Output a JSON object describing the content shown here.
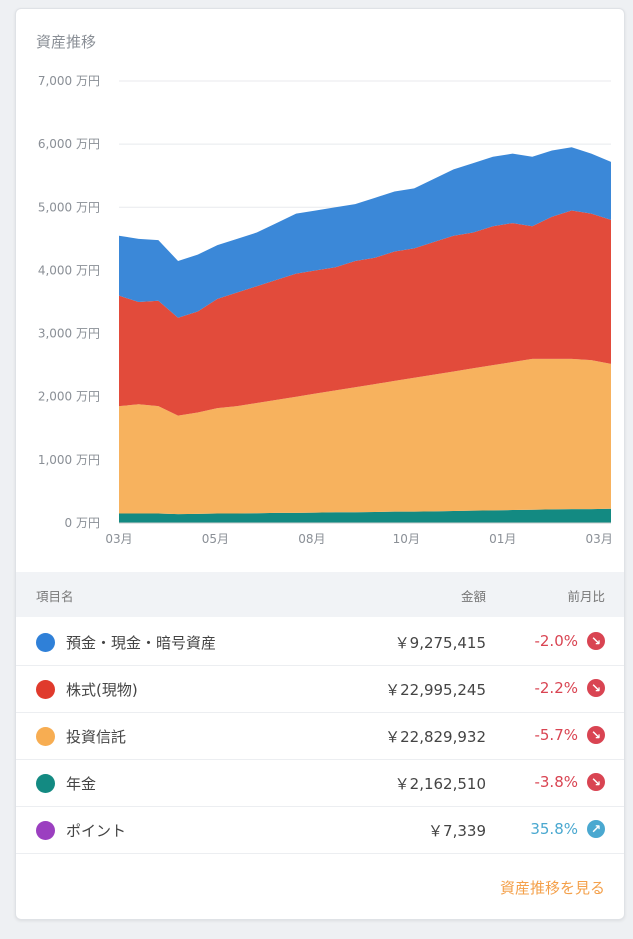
{
  "card": {
    "title": "資産推移",
    "link_label": "資産推移を見る"
  },
  "table": {
    "headers": {
      "name": "項目名",
      "amount": "金額",
      "change": "前月比"
    },
    "rows": [
      {
        "name": "預金・現金・暗号資産",
        "amount": "￥9,275,415",
        "change": "-2.0%",
        "direction": "down",
        "color": "#2f80d8"
      },
      {
        "name": "株式(現物)",
        "amount": "￥22,995,245",
        "change": "-2.2%",
        "direction": "down",
        "color": "#e03a2c"
      },
      {
        "name": "投資信託",
        "amount": "￥22,829,932",
        "change": "-5.7%",
        "direction": "down",
        "color": "#f7ad52"
      },
      {
        "name": "年金",
        "amount": "￥2,162,510",
        "change": "-3.8%",
        "direction": "down",
        "color": "#138a82"
      },
      {
        "name": "ポイント",
        "amount": "￥7,339",
        "change": "35.8%",
        "direction": "up",
        "color": "#9b3fc0"
      }
    ],
    "down_color": "#d94452",
    "up_color": "#4aa8d0"
  },
  "chart_data": {
    "type": "area",
    "stacked": true,
    "ylabel_unit": "万円",
    "ylim": [
      0,
      7000
    ],
    "y_ticks": [
      "0 万円",
      "1,000 万円",
      "2,000 万円",
      "3,000 万円",
      "4,000 万円",
      "5,000 万円",
      "6,000 万円",
      "7,000 万円"
    ],
    "x_ticks": [
      {
        "label": "03月",
        "x": 0
      },
      {
        "label": "05月",
        "x": 4.9
      },
      {
        "label": "08月",
        "x": 9.8
      },
      {
        "label": "10月",
        "x": 14.6
      },
      {
        "label": "01月",
        "x": 19.5
      },
      {
        "label": "03月",
        "x": 24.4
      }
    ],
    "x": [
      0,
      1,
      2,
      3,
      4,
      5,
      6,
      7,
      8,
      9,
      10,
      11,
      12,
      13,
      14,
      15,
      16,
      17,
      18,
      19,
      20,
      21,
      22,
      23,
      24,
      25
    ],
    "series": [
      {
        "name": "年金",
        "color": "#138a82",
        "values": [
          150,
          150,
          150,
          140,
          145,
          150,
          150,
          155,
          160,
          160,
          165,
          170,
          170,
          175,
          180,
          180,
          185,
          190,
          195,
          200,
          205,
          210,
          215,
          220,
          220,
          225
        ]
      },
      {
        "name": "投資信託",
        "color": "#f7b25e",
        "values": [
          1700,
          1730,
          1700,
          1560,
          1605,
          1670,
          1700,
          1745,
          1790,
          1840,
          1885,
          1930,
          1980,
          2025,
          2070,
          2120,
          2165,
          2210,
          2255,
          2300,
          2345,
          2390,
          2385,
          2380,
          2360,
          2295
        ]
      },
      {
        "name": "株式(現物)",
        "color": "#e24b3b",
        "values": [
          1750,
          1620,
          1670,
          1550,
          1600,
          1730,
          1800,
          1850,
          1900,
          1950,
          1950,
          1950,
          2000,
          2000,
          2050,
          2050,
          2100,
          2150,
          2150,
          2200,
          2200,
          2100,
          2250,
          2350,
          2320,
          2280
        ]
      },
      {
        "name": "預金・現金・暗号資産",
        "color": "#3b88d8",
        "values": [
          950,
          1000,
          960,
          900,
          900,
          850,
          850,
          850,
          900,
          950,
          950,
          950,
          900,
          950,
          950,
          950,
          1000,
          1050,
          1100,
          1100,
          1100,
          1100,
          1050,
          1000,
          950,
          920
        ]
      }
    ]
  }
}
